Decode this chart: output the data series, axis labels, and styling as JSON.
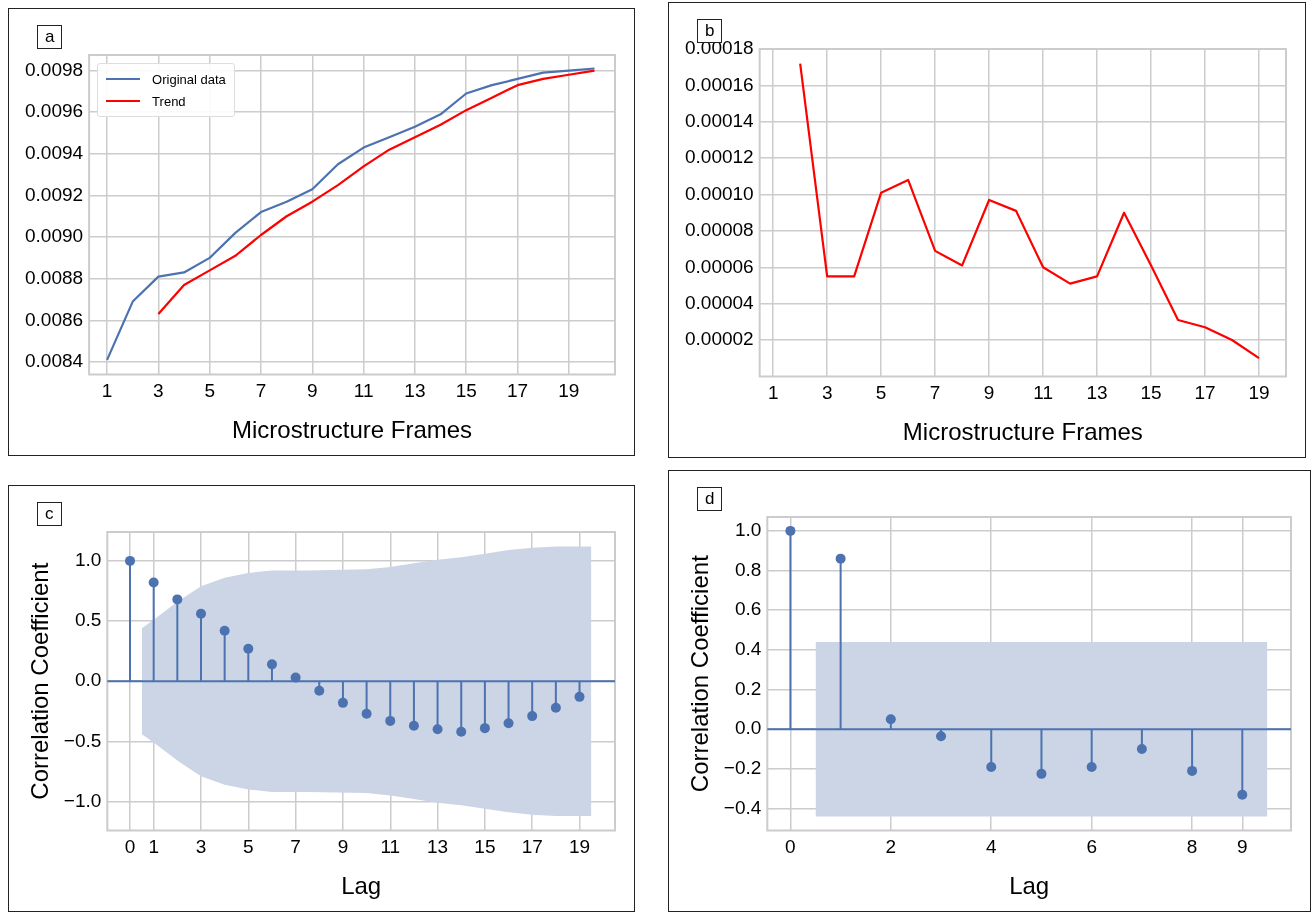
{
  "chart_data": [
    {
      "type": "line",
      "annotations": [
        "a"
      ],
      "xlabel": "Microstructure Frames",
      "grid": true,
      "legend": "top left",
      "marker": "none",
      "xlim": [
        0.3,
        20.8
      ],
      "xticks": [
        1,
        3,
        5,
        7,
        9,
        11,
        13,
        15,
        17,
        19
      ],
      "ylim": [
        0.00834,
        0.009875
      ],
      "yticks": [
        0.0084,
        0.0086,
        0.0088,
        {
          "value": 0.009,
          "label": "0.0090"
        },
        0.0092,
        0.0094,
        0.0096,
        0.0098
      ],
      "x": [
        1,
        2,
        3,
        4,
        5,
        6,
        7,
        8,
        9,
        10,
        11,
        12,
        13,
        14,
        15,
        16,
        17,
        18,
        19,
        20
      ],
      "series": [
        {
          "name": "Original data",
          "color": "#4c72b0",
          "values": [
            0.00841,
            0.00869,
            0.00881,
            0.00883,
            0.0089,
            0.00902,
            0.00912,
            0.00917,
            0.00923,
            0.00935,
            0.00943,
            0.00948,
            0.00953,
            0.00959,
            0.00969,
            0.00973,
            0.00976,
            0.00979,
            0.0098,
            0.00981
          ]
        },
        {
          "name": "Trend",
          "color": "#ff0000",
          "values": [
            null,
            null,
            0.00863,
            0.00877,
            0.00884,
            0.00891,
            0.00901,
            0.0091,
            0.00917,
            0.00925,
            0.00934,
            0.00942,
            0.00948,
            0.00954,
            0.00961,
            0.00967,
            0.00973,
            0.00976,
            0.00978,
            0.0098
          ]
        }
      ]
    },
    {
      "type": "line",
      "annotations": [
        "b"
      ],
      "xlabel": "Microstructure Frames",
      "grid": true,
      "marker": "none",
      "xlim": [
        0.5,
        20
      ],
      "xticks": [
        1,
        3,
        5,
        7,
        9,
        11,
        13,
        15,
        17,
        19
      ],
      "ylim": [
        0,
        0.00018
      ],
      "yticks": [
        {
          "value": 2e-05,
          "label": "0.00002"
        },
        {
          "value": 4e-05,
          "label": "0.00004"
        },
        {
          "value": 6e-05,
          "label": "0.00006"
        },
        {
          "value": 8e-05,
          "label": "0.00008"
        },
        {
          "value": 0.0001,
          "label": "0.00010"
        },
        {
          "value": 0.00012,
          "label": "0.00012"
        },
        {
          "value": 0.00014,
          "label": "0.00014"
        },
        {
          "value": 0.00016,
          "label": "0.00016"
        },
        {
          "value": 0.00018,
          "label": "0.00018"
        }
      ],
      "x": [
        2,
        3,
        4,
        5,
        6,
        7,
        8,
        9,
        10,
        11,
        12,
        13,
        14,
        15,
        16,
        17,
        18,
        19
      ],
      "series": [
        {
          "color": "#ff0000",
          "values": [
            0.000172,
            5.5e-05,
            5.5e-05,
            0.000101,
            0.000108,
            6.9e-05,
            6.1e-05,
            9.7e-05,
            9.1e-05,
            6e-05,
            5.1e-05,
            5.5e-05,
            9e-05,
            6.1e-05,
            3.1e-05,
            2.7e-05,
            2e-05,
            1e-05
          ]
        }
      ]
    },
    {
      "type": "lollipop",
      "annotations": [
        "c"
      ],
      "xlabel": "Lag",
      "ylabel": "Correlation Coefficient",
      "grid": true,
      "marker": "circle",
      "xlim": [
        -0.96,
        20.5
      ],
      "xticks": [
        0,
        1,
        3,
        5,
        7,
        9,
        11,
        13,
        15,
        17,
        19
      ],
      "ylim": [
        -1.24,
        1.24
      ],
      "yticks": [
        {
          "value": -1,
          "label": "−1.0"
        },
        {
          "value": -0.5,
          "label": "−0.5"
        },
        {
          "value": 0,
          "label": "0.0"
        },
        0.5,
        {
          "value": 1,
          "label": "1.0"
        }
      ],
      "ref_lines": [
        {
          "axis": "y",
          "value": 0,
          "color": "#4c72b0"
        }
      ],
      "series": [
        {
          "color": "#cbd5e6",
          "x": [
            0.5,
            1,
            2,
            3,
            4,
            5,
            6,
            7.5,
            10,
            11,
            12,
            13,
            14,
            15,
            16,
            17,
            18,
            19.5
          ],
          "values": [
            null,
            null,
            null,
            null,
            null,
            null,
            null,
            null,
            null,
            null,
            null,
            null,
            null,
            null,
            null,
            null,
            null,
            null
          ],
          "upper": [
            0.44,
            0.51,
            0.66,
            0.79,
            0.86,
            0.9,
            0.92,
            0.92,
            0.93,
            0.95,
            0.98,
            1.01,
            1.03,
            1.06,
            1.09,
            1.11,
            1.12,
            1.12
          ],
          "lower": [
            -0.44,
            -0.51,
            -0.66,
            -0.79,
            -0.86,
            -0.9,
            -0.92,
            -0.92,
            -0.93,
            -0.95,
            -0.98,
            -1.01,
            -1.03,
            -1.06,
            -1.09,
            -1.11,
            -1.12,
            -1.12
          ]
        },
        {
          "color": "#4c72b0",
          "x": [
            0,
            1,
            2,
            3,
            4,
            5,
            6,
            7,
            8,
            9,
            10,
            11,
            12,
            13,
            14,
            15,
            16,
            17,
            18,
            19
          ],
          "values": [
            1.0,
            0.82,
            0.68,
            0.56,
            0.42,
            0.27,
            0.14,
            0.03,
            -0.08,
            -0.18,
            -0.27,
            -0.33,
            -0.37,
            -0.4,
            -0.42,
            -0.39,
            -0.35,
            -0.29,
            -0.22,
            -0.13
          ]
        }
      ]
    },
    {
      "type": "lollipop",
      "annotations": [
        "d"
      ],
      "xlabel": "Lag",
      "ylabel": "Correlation Coefficient",
      "grid": true,
      "marker": "circle",
      "xlim": [
        -0.46,
        9.97
      ],
      "xticks": [
        0,
        2,
        4,
        6,
        8,
        9
      ],
      "ylim": [
        -0.51,
        1.07
      ],
      "yticks": [
        {
          "value": -0.4,
          "label": "−0.4"
        },
        {
          "value": -0.2,
          "label": "−0.2"
        },
        {
          "value": 0,
          "label": "0.0"
        },
        0.2,
        0.4,
        0.6,
        0.8,
        {
          "value": 1,
          "label": "1.0"
        }
      ],
      "ref_lines": [
        {
          "axis": "y",
          "value": 0,
          "color": "#4c72b0"
        }
      ],
      "series": [
        {
          "color": "#cbd5e6",
          "x": [
            0.5,
            9.5
          ],
          "values": [
            null,
            null
          ],
          "upper": [
            0.44,
            0.44
          ],
          "lower": [
            -0.44,
            -0.44
          ]
        },
        {
          "color": "#4c72b0",
          "x": [
            0,
            1,
            2,
            3,
            4,
            5,
            6,
            7,
            8,
            9
          ],
          "values": [
            1.0,
            0.86,
            0.05,
            -0.035,
            -0.19,
            -0.225,
            -0.19,
            -0.1,
            -0.21,
            -0.33
          ]
        }
      ]
    }
  ]
}
